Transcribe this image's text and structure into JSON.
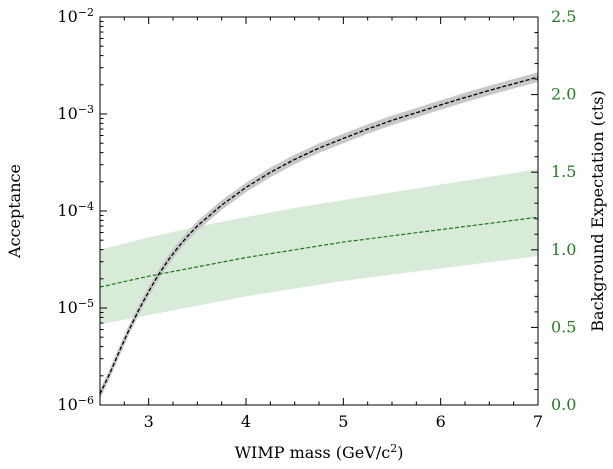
{
  "chart_data": {
    "type": "line",
    "xlabel": "WIMP mass (GeV/c",
    "xlabel_sup": "2",
    "xlabel_end": ")",
    "ylabel": "Acceptance",
    "y2label": "Background Expectation (cts)",
    "xlim": [
      2.5,
      7
    ],
    "ylim": [
      1e-06,
      0.01
    ],
    "yscale": "log",
    "y2lim": [
      0.0,
      2.5
    ],
    "x_ticks": [
      "3",
      "4",
      "5",
      "6",
      "7"
    ],
    "y_ticks": [
      {
        "base": "10",
        "exp": "−6"
      },
      {
        "base": "10",
        "exp": "−5"
      },
      {
        "base": "10",
        "exp": "−4"
      },
      {
        "base": "10",
        "exp": "−3"
      },
      {
        "base": "10",
        "exp": "−2"
      }
    ],
    "y2_ticks": [
      "0.0",
      "0.5",
      "1.0",
      "1.5",
      "2.0",
      "2.5"
    ],
    "grid": false,
    "colors": {
      "acceptance_line": "#000000",
      "acceptance_band": "#c8c8c8",
      "background_line": "#1a7a1a",
      "background_band": "#d8ead8",
      "right_axis": "#2a7a2a"
    },
    "series": [
      {
        "axis": "left",
        "x": [
          2.5,
          2.6,
          2.7,
          2.8,
          2.9,
          3.0,
          3.1,
          3.2,
          3.3,
          3.4,
          3.5,
          3.75,
          4.0,
          4.25,
          4.5,
          4.75,
          5.0,
          5.25,
          5.5,
          5.75,
          6.0,
          6.25,
          6.5,
          6.75,
          7.0
        ],
        "y": [
          1.3e-06,
          2.1e-06,
          3.6e-06,
          6e-06,
          9.6e-06,
          1.48e-05,
          2.2e-05,
          3.1e-05,
          4.2e-05,
          5.5e-05,
          7e-05,
          0.000115,
          0.000175,
          0.00025,
          0.00034,
          0.000445,
          0.00056,
          0.0007,
          0.00086,
          0.00103,
          0.00124,
          0.00148,
          0.00175,
          0.00205,
          0.0024
        ],
        "band_factor": 1.12
      },
      {
        "axis": "right",
        "x": [
          2.5,
          3.0,
          3.5,
          4.0,
          4.5,
          5.0,
          5.5,
          6.0,
          6.5,
          7.0
        ],
        "y": [
          0.76,
          0.83,
          0.89,
          0.95,
          1.0,
          1.05,
          1.09,
          1.13,
          1.17,
          1.21
        ],
        "y_low": [
          0.52,
          0.58,
          0.64,
          0.7,
          0.75,
          0.8,
          0.84,
          0.88,
          0.92,
          0.96
        ],
        "y_high": [
          1.0,
          1.08,
          1.15,
          1.21,
          1.27,
          1.32,
          1.37,
          1.42,
          1.47,
          1.52
        ]
      }
    ]
  }
}
